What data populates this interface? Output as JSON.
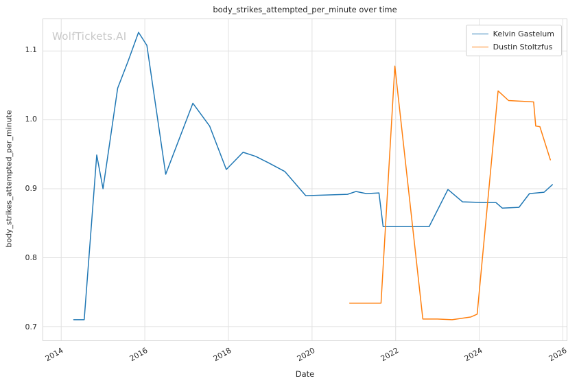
{
  "chart_data": {
    "type": "line",
    "title": "body_strikes_attempted_per_minute over time",
    "xlabel": "Date",
    "ylabel": "body_strikes_attempted_per_minute",
    "watermark": "WolfTickets.AI",
    "grid": true,
    "legend_position": "top-right",
    "xlim": [
      2013.57,
      2026.09
    ],
    "ylim": [
      0.68,
      1.146
    ],
    "xticks": [
      2014,
      2016,
      2018,
      2020,
      2022,
      2024,
      2026
    ],
    "yticks": [
      0.7,
      0.8,
      0.9,
      1.0,
      1.1
    ],
    "series": [
      {
        "name": "Kelvin Gastelum",
        "color": "#1f77b4",
        "points": [
          [
            2014.3,
            0.71
          ],
          [
            2014.55,
            0.71
          ],
          [
            2014.85,
            0.949
          ],
          [
            2015.0,
            0.9
          ],
          [
            2015.35,
            1.046
          ],
          [
            2015.6,
            1.085
          ],
          [
            2015.85,
            1.127
          ],
          [
            2016.05,
            1.108
          ],
          [
            2016.5,
            0.921
          ],
          [
            2017.15,
            1.024
          ],
          [
            2017.55,
            0.991
          ],
          [
            2017.95,
            0.928
          ],
          [
            2018.35,
            0.953
          ],
          [
            2018.65,
            0.947
          ],
          [
            2018.95,
            0.938
          ],
          [
            2019.35,
            0.925
          ],
          [
            2019.85,
            0.89
          ],
          [
            2020.35,
            0.891
          ],
          [
            2020.85,
            0.892
          ],
          [
            2021.05,
            0.896
          ],
          [
            2021.3,
            0.893
          ],
          [
            2021.6,
            0.894
          ],
          [
            2021.7,
            0.845
          ],
          [
            2022.3,
            0.845
          ],
          [
            2022.8,
            0.845
          ],
          [
            2023.25,
            0.899
          ],
          [
            2023.6,
            0.881
          ],
          [
            2024.1,
            0.88
          ],
          [
            2024.4,
            0.88
          ],
          [
            2024.55,
            0.872
          ],
          [
            2024.95,
            0.873
          ],
          [
            2025.2,
            0.893
          ],
          [
            2025.55,
            0.895
          ],
          [
            2025.75,
            0.906
          ]
        ]
      },
      {
        "name": "Dustin Stoltzfus",
        "color": "#ff7f0e",
        "points": [
          [
            2020.9,
            0.734
          ],
          [
            2021.3,
            0.734
          ],
          [
            2021.65,
            0.734
          ],
          [
            2021.98,
            1.078
          ],
          [
            2022.65,
            0.711
          ],
          [
            2023.0,
            0.711
          ],
          [
            2023.35,
            0.71
          ],
          [
            2023.8,
            0.714
          ],
          [
            2023.95,
            0.718
          ],
          [
            2024.45,
            1.042
          ],
          [
            2024.7,
            1.028
          ],
          [
            2025.0,
            1.027
          ],
          [
            2025.3,
            1.026
          ],
          [
            2025.35,
            0.991
          ],
          [
            2025.45,
            0.99
          ],
          [
            2025.7,
            0.942
          ]
        ]
      }
    ]
  }
}
